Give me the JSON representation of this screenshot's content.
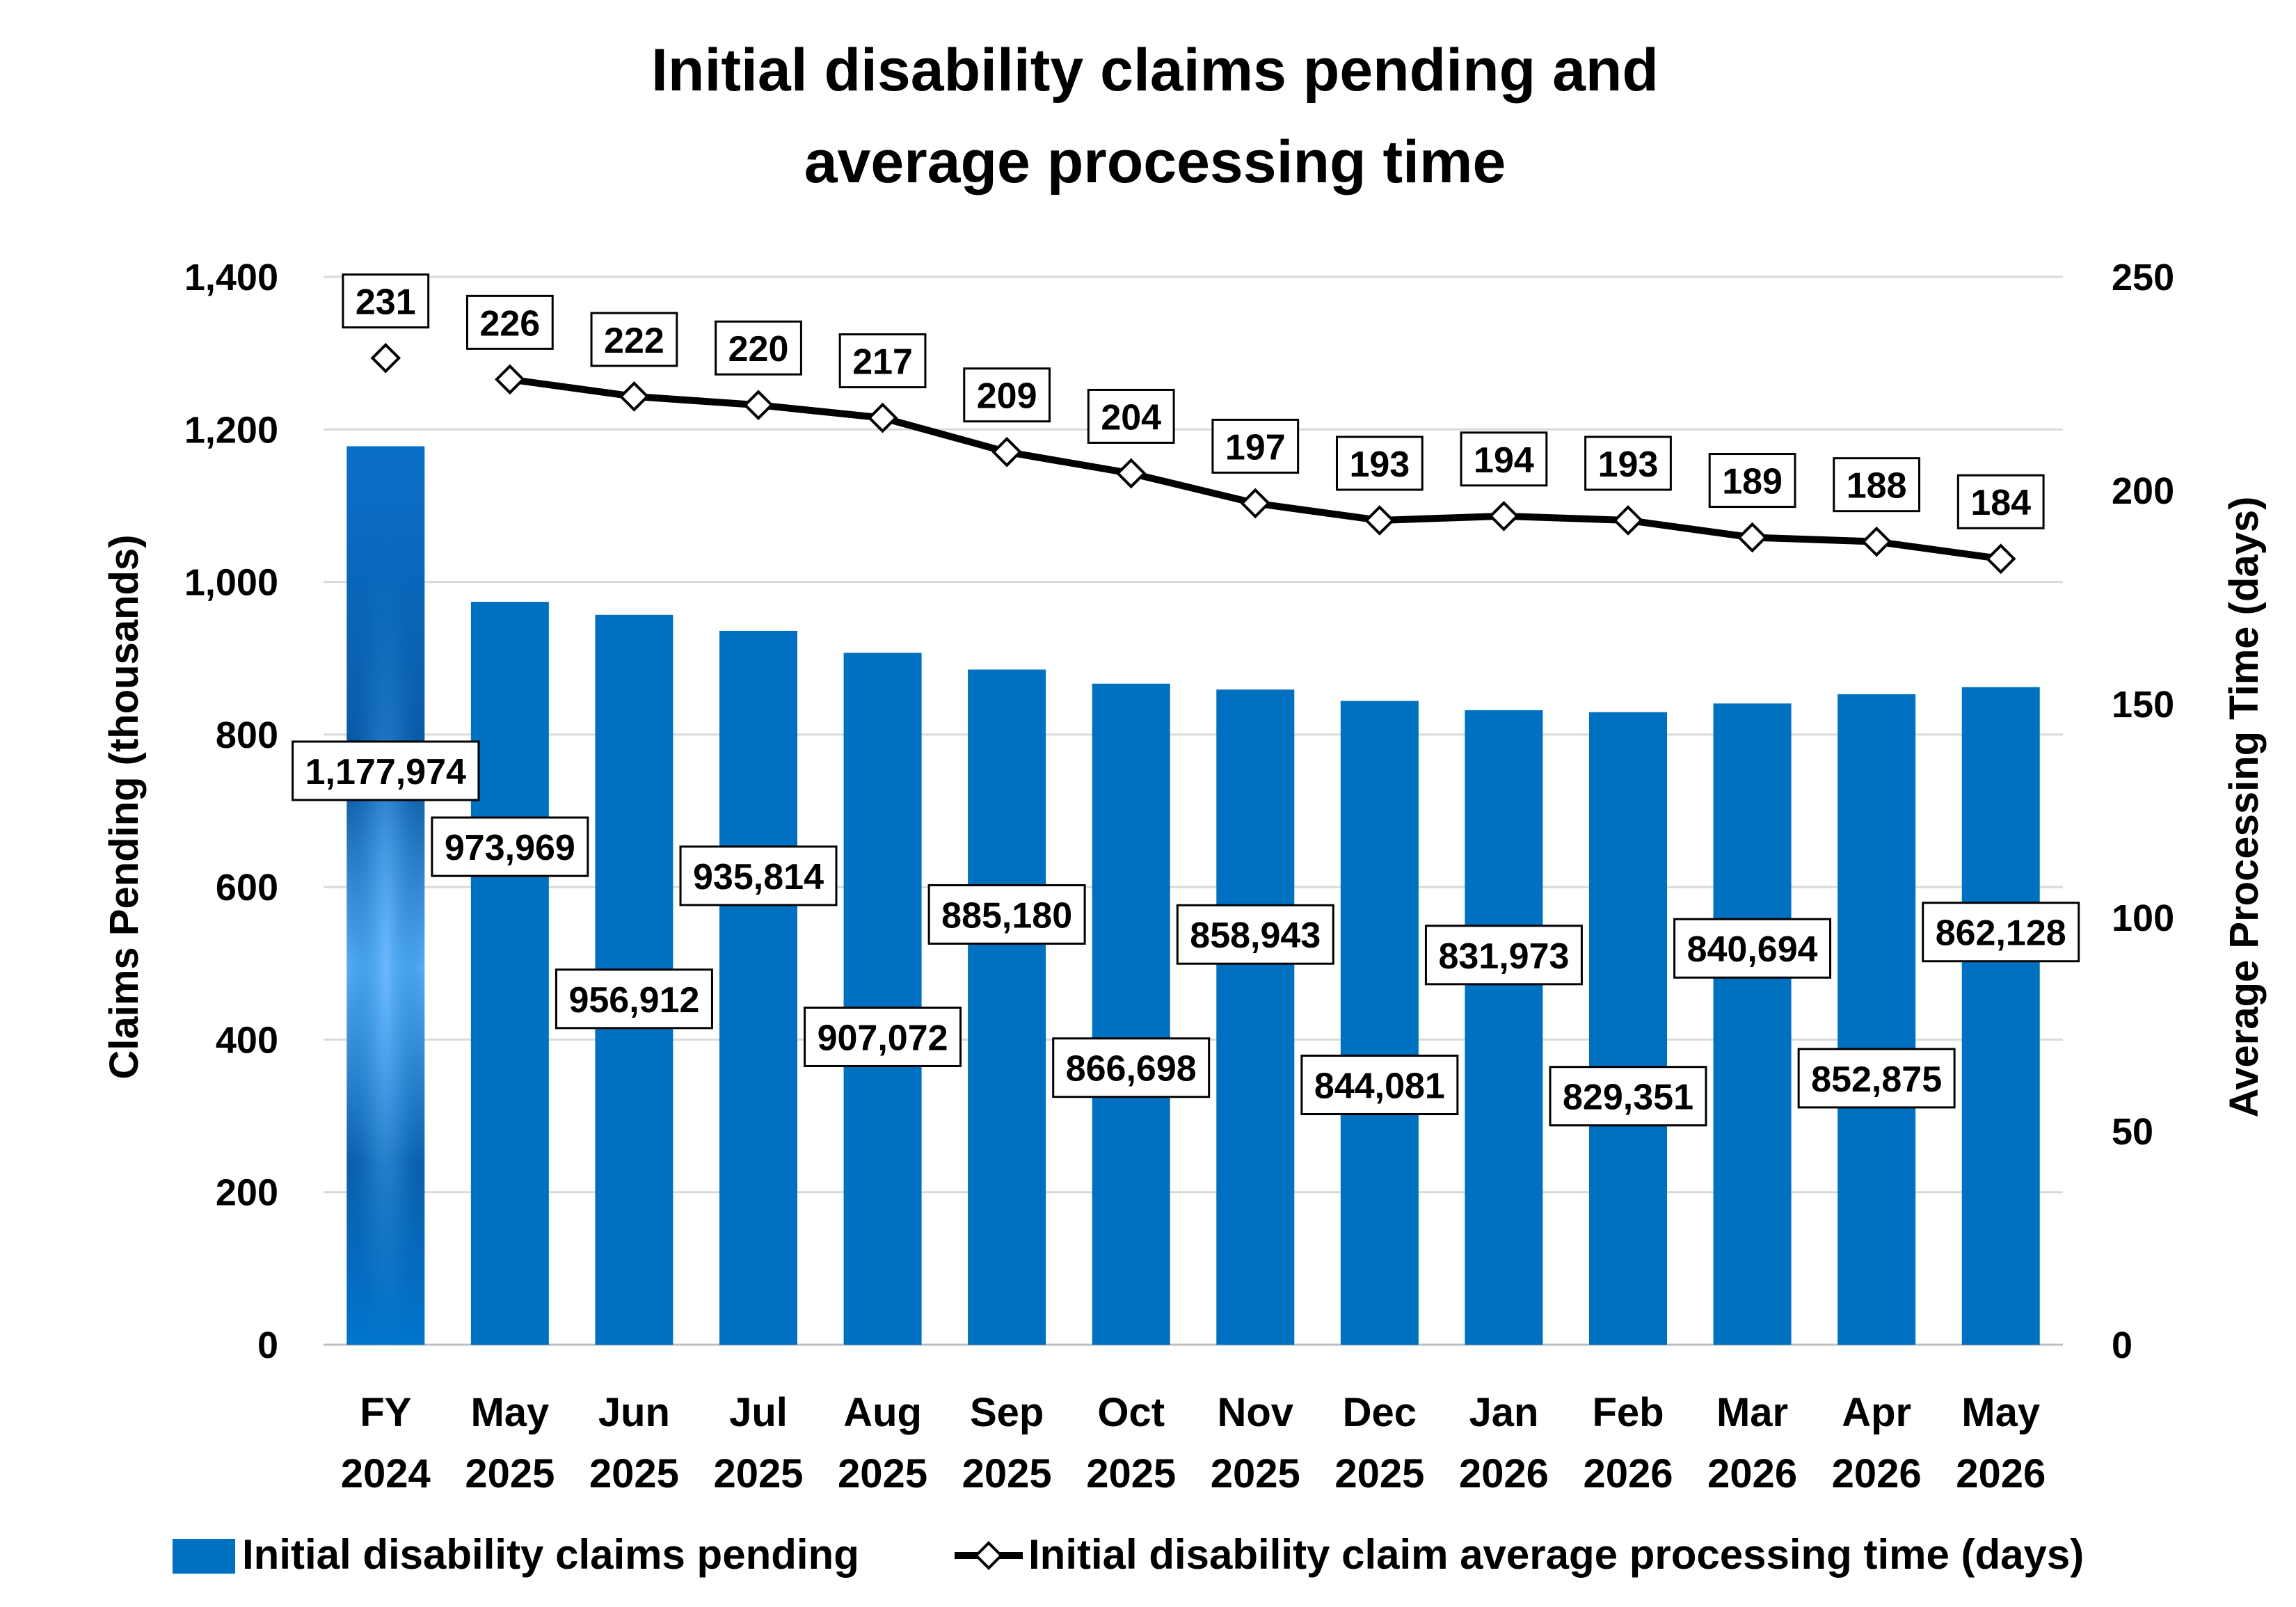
{
  "chart_data": {
    "type": "bar",
    "title": [
      "Initial disability claims pending and",
      "average processing time"
    ],
    "categories": [
      [
        "FY",
        "2024"
      ],
      [
        "May",
        "2025"
      ],
      [
        "Jun",
        "2025"
      ],
      [
        "Jul",
        "2025"
      ],
      [
        "Aug",
        "2025"
      ],
      [
        "Sep",
        "2025"
      ],
      [
        "Oct",
        "2025"
      ],
      [
        "Nov",
        "2025"
      ],
      [
        "Dec",
        "2025"
      ],
      [
        "Jan",
        "2026"
      ],
      [
        "Feb",
        "2026"
      ],
      [
        "Mar",
        "2026"
      ],
      [
        "Apr",
        "2026"
      ],
      [
        "May",
        "2026"
      ]
    ],
    "ylabel": "Claims Pending (thousands)",
    "y2label": "Average Processing Time (days)",
    "ylim": [
      0,
      1400
    ],
    "yticks": [
      0,
      200,
      400,
      600,
      800,
      1000,
      1200,
      1400
    ],
    "ytick_labels": [
      "0",
      "200",
      "400",
      "600",
      "800",
      "1,000",
      "1,200",
      "1,400"
    ],
    "y2lim": [
      0,
      250
    ],
    "y2ticks": [
      0,
      50,
      100,
      150,
      200,
      250
    ],
    "y2tick_labels": [
      "0",
      "50",
      "100",
      "150",
      "200",
      "250"
    ],
    "grid": true,
    "legend_position": "bottom",
    "series": [
      {
        "name": "Initial disability claims pending",
        "type": "bar",
        "axis": "left",
        "color": "#0070C0",
        "values": [
          1177.974,
          973.969,
          956.912,
          935.814,
          907.072,
          885.18,
          866.698,
          858.943,
          844.081,
          831.973,
          829.351,
          840.694,
          852.875,
          862.128
        ],
        "labels": [
          "1,177,974",
          "973,969",
          "956,912",
          "935,814",
          "907,072",
          "885,180",
          "866,698",
          "858,943",
          "844,081",
          "831,973",
          "829,351",
          "840,694",
          "852,875",
          "862,128"
        ]
      },
      {
        "name": "Initial disability claim average processing time (days)",
        "type": "line",
        "axis": "right",
        "color": "#000000",
        "marker": "diamond",
        "values": [
          231,
          226,
          222,
          220,
          217,
          209,
          204,
          197,
          193,
          194,
          193,
          189,
          188,
          184
        ],
        "labels": [
          "231",
          "226",
          "222",
          "220",
          "217",
          "209",
          "204",
          "197",
          "193",
          "194",
          "193",
          "189",
          "188",
          "184"
        ],
        "line_starts_at_index": 1
      }
    ]
  }
}
